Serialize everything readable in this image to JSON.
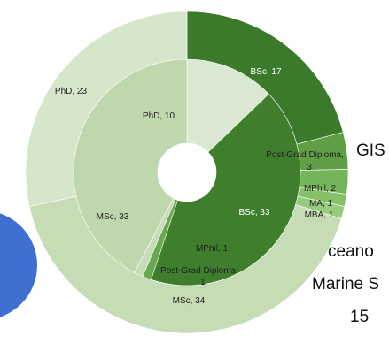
{
  "chart_data": {
    "type": "sunburst",
    "rings": [
      {
        "name": "",
        "segments": [
          {
            "label": "PhD",
            "value": 10,
            "color": "#dbe8d1"
          },
          {
            "label": "BSc",
            "value": 33,
            "color": "#3f7e2d"
          },
          {
            "label": "MPhil",
            "value": 1,
            "color": "#6aa84f"
          },
          {
            "label": "Post-Grad Diploma",
            "value": 1,
            "color": "#c7dcb8"
          },
          {
            "label": "MSc",
            "value": 33,
            "color": "#bfd7ad"
          }
        ]
      },
      {
        "name": "",
        "segments": [
          {
            "label": "BSc",
            "value": 17,
            "color": "#3b7a2a"
          },
          {
            "label": "Post-Grad Diploma",
            "value": 3,
            "color": "#5f9f45"
          },
          {
            "label": "MPhil",
            "value": 2,
            "color": "#75b55a"
          },
          {
            "label": "MA",
            "value": 1,
            "color": "#86c16a"
          },
          {
            "label": "MBA",
            "value": 1,
            "color": "#98cc7c"
          },
          {
            "label": "MSc",
            "value": 34,
            "color": "#c6dcb5"
          },
          {
            "label": "PhD",
            "value": 23,
            "color": "#d6e6ca"
          }
        ]
      }
    ],
    "labels": [
      {
        "text": "PhD, 10"
      },
      {
        "text": "BSc, 33"
      },
      {
        "text": "MPhil, 1"
      },
      {
        "text": "Post-Grad Diploma,"
      },
      {
        "text": "1"
      },
      {
        "text": "MSc, 33"
      },
      {
        "text": "BSc, 17"
      },
      {
        "text": "Post-Grad Diploma,"
      },
      {
        "text": "3"
      },
      {
        "text": "MPhil, 2"
      },
      {
        "text": "MA, 1"
      },
      {
        "text": "MBA, 1"
      },
      {
        "text": "MSc, 34"
      },
      {
        "text": "PhD, 23"
      }
    ]
  },
  "background_text": {
    "gis": "GIS",
    "oceano": "ceano",
    "marine": "Marine S",
    "number": "15"
  },
  "colors": {
    "background": "#ffffff",
    "accent_blue": "#3f6fd1"
  }
}
